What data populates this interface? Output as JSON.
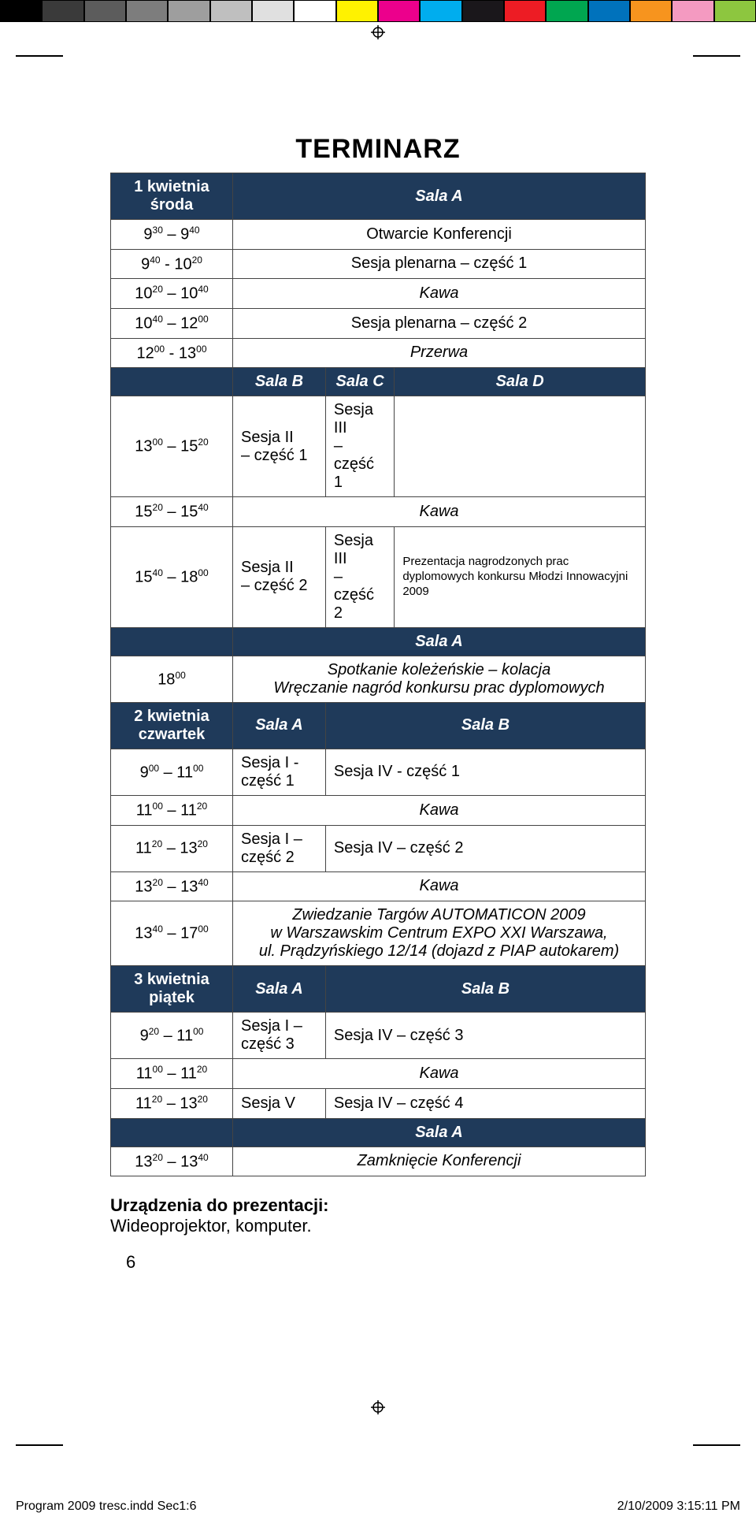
{
  "colorbar": [
    "#000000",
    "#3a3a3a",
    "#5c5c5c",
    "#7d7d7d",
    "#9e9e9e",
    "#bfbfbf",
    "#e0e0e0",
    "#ffffff",
    "#fff200",
    "#ec008c",
    "#00adee",
    "#1a171b",
    "#ed1c24",
    "#00a650",
    "#0072bc",
    "#f7941e",
    "#f49ac1",
    "#8dc63f"
  ],
  "title": "TERMINARZ",
  "day1": {
    "header_line1": "1 kwietnia",
    "header_line2": "środa",
    "sala_a": "Sala A",
    "r1_time": "9<sup>30</sup> – 9<sup>40</sup>",
    "r1_text": "Otwarcie Konferencji",
    "r2_time": "9<sup>40</sup> - 10<sup>20</sup>",
    "r2_text": "Sesja plenarna – część 1",
    "r3_time": "10<sup>20</sup> – 10<sup>40</sup>",
    "r3_text": "Kawa",
    "r4_time": "10<sup>40</sup> – 12<sup>00</sup>",
    "r4_text": "Sesja plenarna – część 2",
    "r5_time": "12<sup>00</sup> - 13<sup>00</sup>",
    "r5_text": "Przerwa",
    "sala_b": "Sala B",
    "sala_c": "Sala C",
    "sala_d": "Sala D",
    "r6_time": "13<sup>00</sup> – 15<sup>20</sup>",
    "r6_b": "Sesja II<br>– część 1",
    "r6_c": "Sesja III<br>– część 1",
    "r7_time": "15<sup>20</sup> – 15<sup>40</sup>",
    "r7_text": "Kawa",
    "r8_time": "15<sup>40</sup> – 18<sup>00</sup>",
    "r8_b": "Sesja II<br>– część 2",
    "r8_c": "Sesja III<br>– część 2",
    "r8_d": "Prezentacja nagrodzonych prac dyplomowych konkursu Młodzi Innowacyjni 2009",
    "sala_a2": "Sala A",
    "r9_time": "18<sup>00</sup>",
    "r9_l1": "Spotkanie koleżeńskie – kolacja",
    "r9_l2": "Wręczanie nagród konkursu prac dyplomowych"
  },
  "day2": {
    "header_line1": "2 kwietnia",
    "header_line2": "czwartek",
    "sala_a": "Sala A",
    "sala_b": "Sala B",
    "r1_time": "9<sup>00</sup> – 11<sup>00</sup>",
    "r1_a": "Sesja I - część 1",
    "r1_b": "Sesja IV - część 1",
    "r2_time": "11<sup>00</sup> – 11<sup>20</sup>",
    "r2_text": "Kawa",
    "r3_time": "11<sup>20</sup> – 13<sup>20</sup>",
    "r3_a": "Sesja I – część 2",
    "r3_b": "Sesja IV – część 2",
    "r4_time": "13<sup>20</sup> – 13<sup>40</sup>",
    "r4_text": "Kawa",
    "r5_time": "13<sup>40</sup> – 17<sup>00</sup>",
    "r5_l1": "Zwiedzanie Targów AUTOMATICON 2009",
    "r5_l2": "w Warszawskim Centrum EXPO XXI Warszawa,",
    "r5_l3": "ul. Prądzyńskiego 12/14 (dojazd z PIAP autokarem)"
  },
  "day3": {
    "header_line1": "3 kwietnia",
    "header_line2": "piątek",
    "sala_a": "Sala A",
    "sala_b": "Sala B",
    "r1_time": "9<sup>20</sup> – 11<sup>00</sup>",
    "r1_a": "Sesja I – część 3",
    "r1_b": "Sesja IV – część 3",
    "r2_time": "11<sup>00</sup> – 11<sup>20</sup>",
    "r2_text": "Kawa",
    "r3_time": "11<sup>20</sup> – 13<sup>20</sup>",
    "r3_a": "Sesja V",
    "r3_b": "Sesja IV – część 4",
    "sala_a2": "Sala A",
    "r4_time": "13<sup>20</sup> – 13<sup>40</sup>",
    "r4_text": "Zamknięcie Konferencji"
  },
  "equip": {
    "label": "Urządzenia do prezentacji:",
    "text": "Wideoprojektor, komputer."
  },
  "pagenum": "6",
  "footer": {
    "file": "Program 2009 tresc.indd   Sec1:6",
    "date": "2/10/2009   3:15:11 PM"
  }
}
